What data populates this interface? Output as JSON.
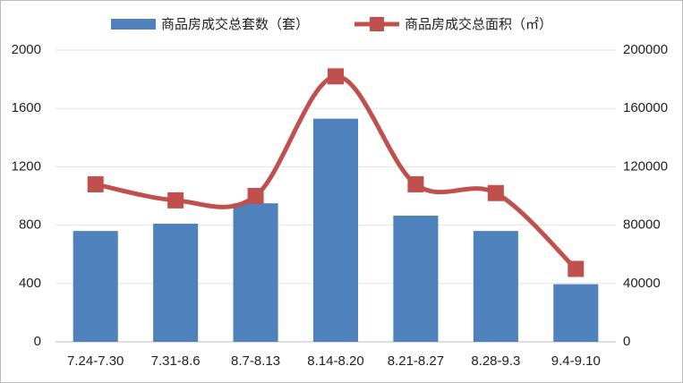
{
  "chart_data": {
    "type": "combo",
    "categories": [
      "7.24-7.30",
      "7.31-8.6",
      "8.7-8.13",
      "8.14-8.20",
      "8.21-8.27",
      "8.28-9.3",
      "9.4-9.10"
    ],
    "series": [
      {
        "name": "商品房成交总套数（套）",
        "type": "bar",
        "color": "#4f81bd",
        "values": [
          760,
          810,
          950,
          1530,
          865,
          760,
          395
        ]
      },
      {
        "name": "商品房成交总面积（㎡）",
        "type": "line",
        "axis": "y2",
        "color": "#c0504d",
        "values": [
          108000,
          97000,
          100000,
          182000,
          108000,
          102000,
          50000
        ]
      }
    ],
    "ylim": [
      0,
      2000
    ],
    "yticks": [
      0,
      400,
      800,
      1200,
      1600,
      2000
    ],
    "y2lim": [
      0,
      200000
    ],
    "y2ticks": [
      0,
      40000,
      80000,
      120000,
      160000,
      200000
    ],
    "grid": true,
    "legend": "top"
  }
}
